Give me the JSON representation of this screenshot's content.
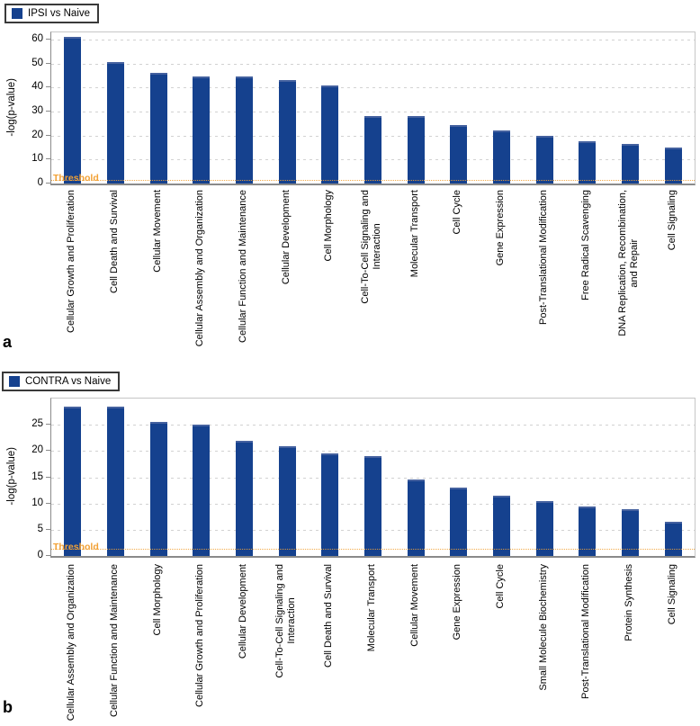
{
  "panels": [
    {
      "letter": "a"
    },
    {
      "letter": "b"
    }
  ],
  "chart_data": [
    {
      "type": "bar",
      "legend": "IPSI vs Naive",
      "ylabel": "-log(p-value)",
      "ylim": [
        0,
        63
      ],
      "yticks": [
        0,
        10,
        20,
        30,
        40,
        50,
        60
      ],
      "grid": "horizontal-dashed",
      "legend_position": "top-left",
      "bar_color": "#15418e",
      "threshold": {
        "label": "Threshold",
        "value": 1.25,
        "color": "#f2a135"
      },
      "categories": [
        "Cellular Growth and Proliferation",
        "Cell Death and Survival",
        "Cellular Movement",
        "Cellular Assembly and Organization",
        "Cellular Function and Maintenance",
        "Cellular Development",
        "Cell Morphology",
        "Cell-To-Cell Signaling and\nInteraction",
        "Molecular Transport",
        "Cell Cycle",
        "Gene Expression",
        "Post-Translational Modification",
        "Free Radical Scavenging",
        "DNA Replication, Recombination,\nand Repair",
        "Cell Signaling"
      ],
      "values": [
        61,
        50.5,
        46,
        44.5,
        44.5,
        43,
        41,
        28,
        28,
        24.5,
        22,
        20,
        17.5,
        16.5,
        15
      ]
    },
    {
      "type": "bar",
      "legend": "CONTRA vs Naive",
      "ylabel": "-log(p-value)",
      "ylim": [
        0,
        30
      ],
      "yticks": [
        0,
        5,
        10,
        15,
        20,
        25
      ],
      "grid": "horizontal-dashed",
      "legend_position": "top-left",
      "bar_color": "#15418e",
      "threshold": {
        "label": "Threshold",
        "value": 1.25,
        "color": "#f2a135"
      },
      "categories": [
        "Cellular Assembly and Organization",
        "Cellular Function and Maintenance",
        "Cell Morphology",
        "Cellular Growth and Proliferation",
        "Cellular Development",
        "Cell-To-Cell Signaling and\nInteraction",
        "Cell Death and Survival",
        "Molecular Transport",
        "Cellular Movement",
        "Gene Expression",
        "Cell Cycle",
        "Small Molecule Biochemistry",
        "Post-Translational Modification",
        "Protein Synthesis",
        "Cell Signaling"
      ],
      "values": [
        28.5,
        28.5,
        25.5,
        25,
        22,
        21,
        19.5,
        19,
        14.5,
        13,
        11.5,
        10.5,
        9.5,
        9,
        6.5
      ]
    }
  ]
}
